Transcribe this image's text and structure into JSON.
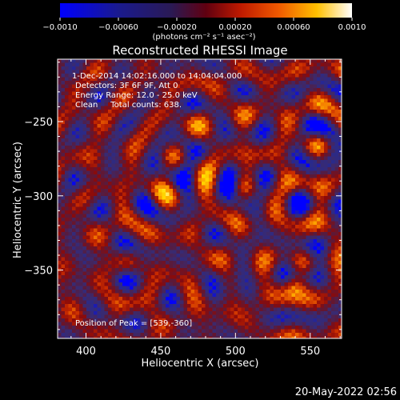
{
  "chart_data": {
    "type": "heatmap",
    "title": "Reconstructed RHESSI Image",
    "xlabel": "Heliocentric X (arcsec)",
    "ylabel": "Heliocentric Y (arcsec)",
    "xlim": [
      381,
      571
    ],
    "ylim": [
      -396,
      -208
    ],
    "x_ticks": [
      400,
      450,
      500,
      550
    ],
    "x_tick_labels": [
      "400",
      "450",
      "500",
      "550"
    ],
    "y_ticks": [
      -250,
      -300,
      -350
    ],
    "y_tick_labels": [
      "−250",
      "−300",
      "−350"
    ],
    "colorbar": {
      "range": [
        -0.001,
        0.001
      ],
      "tick_values": [
        -0.001,
        -0.0006,
        -0.0002,
        0.0002,
        0.0006,
        0.001
      ],
      "tick_labels": [
        "−0.0010",
        "−0.00060",
        "−0.00020",
        "0.00020",
        "0.00060",
        "0.0010"
      ],
      "unit_label": "(photons cm⁻² s⁻¹ asec⁻²)"
    },
    "colormap_stops": [
      "#0000ff",
      "#2a2a8a",
      "#3b2a6e",
      "#5a1a3a",
      "#8b0a0a",
      "#c82a00",
      "#f06a00",
      "#ffb000",
      "#ffe000",
      "#fffff0"
    ],
    "annotations": [
      "1-Dec-2014 14:02:16.000 to 14:04:04.000",
      "Detectors: 3F 6F 9F, Att 0",
      "Energy Range: 12.0 - 25.0 keV",
      "Clean     Total counts: 638."
    ],
    "peak_label": "Position of Peak = [539,-360]",
    "peak": {
      "x": 539,
      "y": -360
    },
    "grid": false,
    "legend": "none"
  },
  "footer": {
    "timestamp": "20-May-2022 02:56"
  }
}
